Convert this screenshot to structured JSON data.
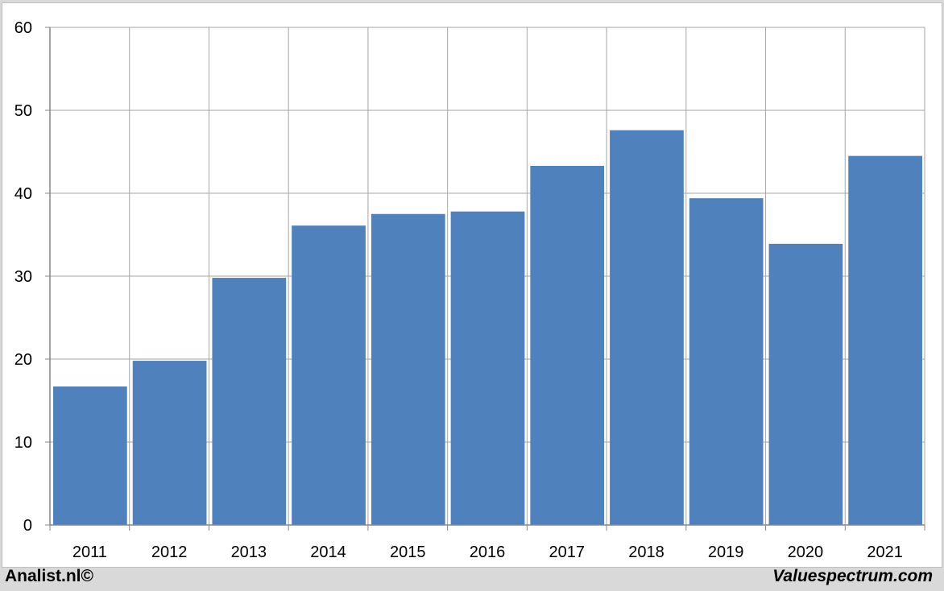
{
  "footer": {
    "left_text": "Analist.nl©",
    "right_text": "Valuespectrum.com"
  },
  "colors": {
    "bar": "#4f81bd",
    "grid": "#a6a6a6",
    "axis": "#868686",
    "background": "#ffffff",
    "frame": "#d9d9d9"
  },
  "chart_data": {
    "type": "bar",
    "categories": [
      "2011",
      "2012",
      "2013",
      "2014",
      "2015",
      "2016",
      "2017",
      "2018",
      "2019",
      "2020",
      "2021"
    ],
    "values": [
      16.7,
      19.8,
      29.8,
      36.1,
      37.5,
      37.8,
      43.3,
      47.6,
      39.4,
      33.9,
      44.5
    ],
    "title": "",
    "xlabel": "",
    "ylabel": "",
    "ylim": [
      0,
      60
    ],
    "yticks": [
      "0",
      "10",
      "20",
      "30",
      "40",
      "50",
      "60"
    ],
    "grid": true,
    "legend": "none"
  }
}
